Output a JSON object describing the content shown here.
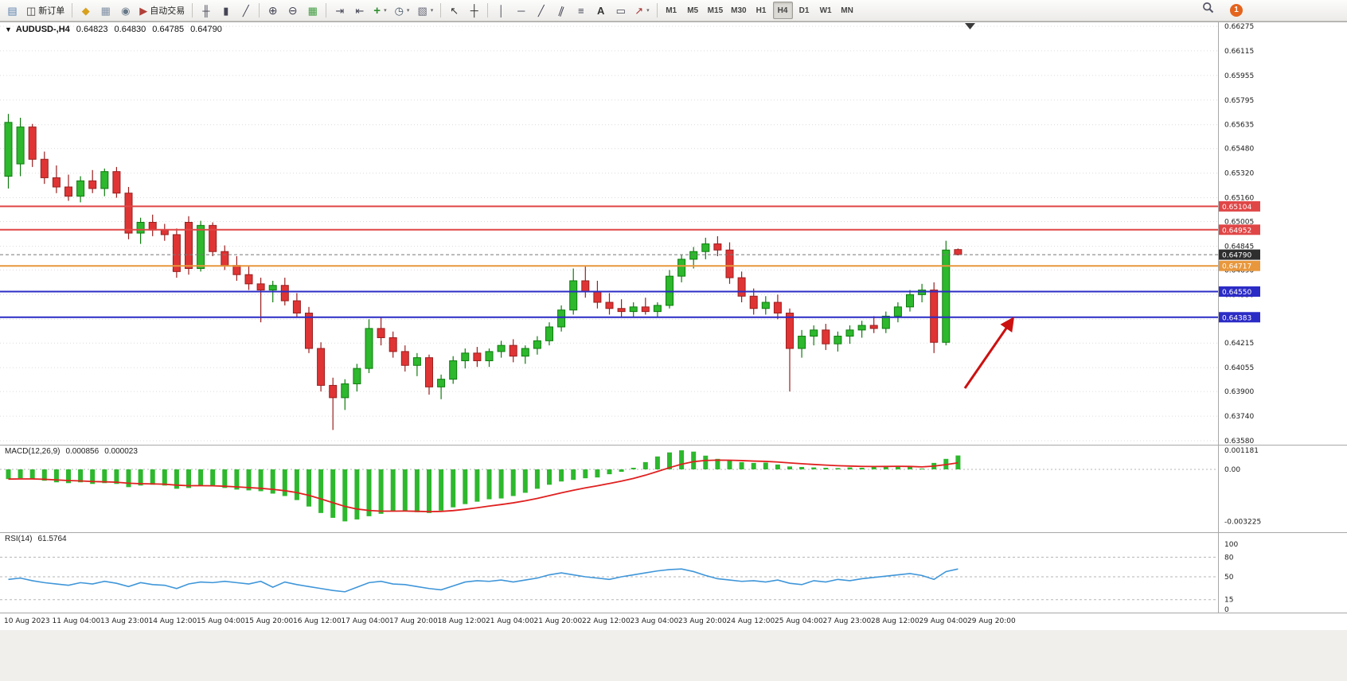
{
  "toolbar": {
    "groups": [
      {
        "items": [
          {
            "name": "new-chart-button",
            "icon": "new-chart-icon"
          },
          {
            "name": "new-order-button",
            "icon": "new-order-icon",
            "label": "新订单"
          }
        ]
      },
      {
        "items": [
          {
            "name": "editor-button",
            "icon": "editor-icon"
          },
          {
            "name": "layouts-button",
            "icon": "layouts-icon"
          },
          {
            "name": "market-button",
            "icon": "market-icon"
          },
          {
            "name": "autotrading-button",
            "icon": "autotrading-icon",
            "label": "自动交易"
          }
        ]
      },
      {
        "items": [
          {
            "name": "bar-chart-button",
            "icon": "bar-chart-icon"
          },
          {
            "name": "candle-chart-button",
            "icon": "candle-chart-icon"
          },
          {
            "name": "line-chart-button",
            "icon": "line-chart-icon"
          }
        ]
      },
      {
        "items": [
          {
            "name": "zoom-in-button",
            "icon": "zoom-in-icon"
          },
          {
            "name": "zoom-out-button",
            "icon": "zoom-out-icon"
          },
          {
            "name": "tile-windows-button",
            "icon": "tile-windows-icon"
          }
        ]
      },
      {
        "items": [
          {
            "name": "auto-scroll-button",
            "icon": "auto-scroll-icon"
          },
          {
            "name": "chart-shift-button",
            "icon": "chart-shift-icon"
          },
          {
            "name": "indicators-button",
            "icon": "indicators-icon",
            "dropdown": true
          },
          {
            "name": "periods-button",
            "icon": "periods-icon",
            "dropdown": true
          },
          {
            "name": "templates-button",
            "icon": "templates-icon",
            "dropdown": true
          }
        ]
      },
      {
        "items": [
          {
            "name": "cursor-button",
            "icon": "cursor-icon"
          },
          {
            "name": "crosshair-button",
            "icon": "crosshair-icon"
          }
        ]
      },
      {
        "items": [
          {
            "name": "vertical-line-button",
            "icon": "vertical-line-icon"
          },
          {
            "name": "horizontal-line-button",
            "icon": "horizontal-line-icon"
          },
          {
            "name": "trendline-button",
            "icon": "trendline-icon"
          },
          {
            "name": "channel-button",
            "icon": "channel-icon"
          },
          {
            "name": "fibonacci-button",
            "icon": "fibonacci-icon"
          },
          {
            "name": "text-button",
            "icon": "text-icon"
          },
          {
            "name": "text-label-button",
            "icon": "text-label-icon"
          },
          {
            "name": "arrows-button",
            "icon": "arrows-icon",
            "dropdown": true
          }
        ]
      }
    ],
    "timeframes": [
      {
        "label": "M1"
      },
      {
        "label": "M5"
      },
      {
        "label": "M15"
      },
      {
        "label": "M30"
      },
      {
        "label": "H1"
      },
      {
        "label": "H4",
        "active": true
      },
      {
        "label": "D1"
      },
      {
        "label": "W1"
      },
      {
        "label": "MN"
      }
    ],
    "right": {
      "notification_count": "1"
    }
  },
  "colors": {
    "bull": "#2db82d",
    "bull_border": "#0f7c0f",
    "bear": "#e03434",
    "bear_border": "#9a1f1f",
    "grid": "#dcdcdc",
    "arrow": "#cc1111",
    "panel_border": "#a8a8a8"
  },
  "chart": {
    "title": {
      "symbol": "AUDUSD-,H4",
      "open": "0.64823",
      "high": "0.64830",
      "low": "0.64785",
      "close": "0.64790"
    },
    "axis_price_labels": [
      "0.66275",
      "0.66115",
      "0.65955",
      "0.65795",
      "0.65635",
      "0.65480",
      "0.65320",
      "0.65160",
      "0.65005",
      "0.64845",
      "0.64690",
      "0.64530",
      "0.64370",
      "0.64215",
      "0.64055",
      "0.63900",
      "0.63740",
      "0.63580"
    ],
    "time_labels": [
      "10 Aug 2023",
      "11 Aug 04:00",
      "13 Aug 23:00",
      "14 Aug 12:00",
      "15 Aug 04:00",
      "15 Aug 20:00",
      "16 Aug 12:00",
      "17 Aug 04:00",
      "17 Aug 20:00",
      "18 Aug 12:00",
      "21 Aug 04:00",
      "21 Aug 20:00",
      "22 Aug 12:00",
      "23 Aug 04:00",
      "23 Aug 20:00",
      "24 Aug 12:00",
      "25 Aug 04:00",
      "27 Aug 23:00",
      "28 Aug 12:00",
      "29 Aug 04:00",
      "29 Aug 20:00"
    ],
    "levels": [
      {
        "name": "resistance-line-1",
        "label": "0.65104",
        "price": 0.65104,
        "color": "#e04646"
      },
      {
        "name": "resistance-line-2",
        "label": "0.64952",
        "price": 0.64952,
        "color": "#e04646"
      },
      {
        "name": "mid-line",
        "label": "0.64717",
        "price": 0.64717,
        "color": "#e8973c"
      },
      {
        "name": "support-line-1",
        "label": "0.64550",
        "price": 0.6455,
        "color": "#2b2bc6"
      },
      {
        "name": "support-line-2",
        "label": "0.64383",
        "price": 0.64383,
        "color": "#2b2bc6"
      }
    ],
    "current_price": {
      "label": "0.64790",
      "price": 0.6479,
      "line_color": "#777777",
      "tag_color": "#2e2e2e"
    },
    "candles": [
      [
        0.653,
        0.65705,
        0.6522,
        0.6565
      ],
      [
        0.6538,
        0.6568,
        0.653,
        0.6562
      ],
      [
        0.6562,
        0.6564,
        0.6536,
        0.6541
      ],
      [
        0.6541,
        0.6546,
        0.6525,
        0.6529
      ],
      [
        0.6529,
        0.6537,
        0.6519,
        0.6523
      ],
      [
        0.6523,
        0.6531,
        0.6514,
        0.6517
      ],
      [
        0.6517,
        0.653,
        0.6513,
        0.6527
      ],
      [
        0.6527,
        0.6534,
        0.6519,
        0.6522
      ],
      [
        0.6522,
        0.6535,
        0.6517,
        0.6533
      ],
      [
        0.6533,
        0.6536,
        0.6516,
        0.6519
      ],
      [
        0.6519,
        0.6523,
        0.6489,
        0.6493
      ],
      [
        0.6493,
        0.6503,
        0.6486,
        0.65
      ],
      [
        0.65,
        0.6505,
        0.6491,
        0.6495
      ],
      [
        0.6495,
        0.6499,
        0.6488,
        0.6492
      ],
      [
        0.6492,
        0.6496,
        0.6464,
        0.6468
      ],
      [
        0.65,
        0.6504,
        0.6466,
        0.647
      ],
      [
        0.647,
        0.6501,
        0.6468,
        0.6498
      ],
      [
        0.6498,
        0.65,
        0.6478,
        0.6481
      ],
      [
        0.6481,
        0.6485,
        0.6469,
        0.6472
      ],
      [
        0.6472,
        0.6478,
        0.6462,
        0.6466
      ],
      [
        0.6466,
        0.6472,
        0.6456,
        0.646
      ],
      [
        0.646,
        0.6464,
        0.6435,
        0.6456
      ],
      [
        0.6456,
        0.6462,
        0.6448,
        0.6459
      ],
      [
        0.6459,
        0.6464,
        0.6446,
        0.6449
      ],
      [
        0.6449,
        0.6454,
        0.6438,
        0.6441
      ],
      [
        0.6441,
        0.6445,
        0.6415,
        0.6418
      ],
      [
        0.6418,
        0.6422,
        0.639,
        0.6394
      ],
      [
        0.6394,
        0.6399,
        0.6365,
        0.6386
      ],
      [
        0.6386,
        0.6398,
        0.6378,
        0.6395
      ],
      [
        0.6395,
        0.6408,
        0.639,
        0.6405
      ],
      [
        0.6405,
        0.6437,
        0.6402,
        0.6431
      ],
      [
        0.6431,
        0.6438,
        0.642,
        0.6425
      ],
      [
        0.6425,
        0.6429,
        0.6412,
        0.6416
      ],
      [
        0.6416,
        0.642,
        0.6403,
        0.6407
      ],
      [
        0.6407,
        0.6415,
        0.64,
        0.6412
      ],
      [
        0.6412,
        0.6414,
        0.6388,
        0.6393
      ],
      [
        0.6393,
        0.6401,
        0.6385,
        0.6398
      ],
      [
        0.6398,
        0.6413,
        0.6395,
        0.641
      ],
      [
        0.641,
        0.6418,
        0.6405,
        0.6415
      ],
      [
        0.6415,
        0.6419,
        0.6406,
        0.641
      ],
      [
        0.641,
        0.6418,
        0.6406,
        0.6416
      ],
      [
        0.6416,
        0.6423,
        0.6412,
        0.642
      ],
      [
        0.642,
        0.6424,
        0.6409,
        0.6413
      ],
      [
        0.6413,
        0.642,
        0.6408,
        0.6418
      ],
      [
        0.6418,
        0.6426,
        0.6414,
        0.6423
      ],
      [
        0.6423,
        0.6435,
        0.642,
        0.6432
      ],
      [
        0.6432,
        0.6446,
        0.6429,
        0.6443
      ],
      [
        0.6443,
        0.647,
        0.644,
        0.6462
      ],
      [
        0.6462,
        0.6472,
        0.6451,
        0.6455
      ],
      [
        0.6455,
        0.6462,
        0.6444,
        0.6448
      ],
      [
        0.6448,
        0.6454,
        0.644,
        0.6444
      ],
      [
        0.6444,
        0.645,
        0.6438,
        0.6442
      ],
      [
        0.6442,
        0.6448,
        0.6438,
        0.6445
      ],
      [
        0.6445,
        0.6451,
        0.644,
        0.6442
      ],
      [
        0.6442,
        0.6448,
        0.6438,
        0.6446
      ],
      [
        0.6446,
        0.6469,
        0.6444,
        0.6465
      ],
      [
        0.6465,
        0.6479,
        0.6461,
        0.6476
      ],
      [
        0.6476,
        0.6484,
        0.647,
        0.6481
      ],
      [
        0.6481,
        0.649,
        0.6476,
        0.6486
      ],
      [
        0.6486,
        0.6491,
        0.6478,
        0.6482
      ],
      [
        0.6482,
        0.6487,
        0.646,
        0.6464
      ],
      [
        0.6464,
        0.6468,
        0.6448,
        0.6452
      ],
      [
        0.6452,
        0.6457,
        0.644,
        0.6444
      ],
      [
        0.6444,
        0.6452,
        0.644,
        0.6448
      ],
      [
        0.6448,
        0.6453,
        0.6437,
        0.6441
      ],
      [
        0.6441,
        0.6444,
        0.639,
        0.6418
      ],
      [
        0.6418,
        0.643,
        0.6412,
        0.6426
      ],
      [
        0.6426,
        0.6433,
        0.642,
        0.643
      ],
      [
        0.643,
        0.6434,
        0.6417,
        0.6421
      ],
      [
        0.6421,
        0.6429,
        0.6416,
        0.6426
      ],
      [
        0.6426,
        0.6433,
        0.6421,
        0.643
      ],
      [
        0.643,
        0.6436,
        0.6425,
        0.6433
      ],
      [
        0.6433,
        0.6439,
        0.6428,
        0.6431
      ],
      [
        0.6431,
        0.6442,
        0.6428,
        0.6439
      ],
      [
        0.6439,
        0.6448,
        0.6435,
        0.6445
      ],
      [
        0.6445,
        0.6456,
        0.6442,
        0.6453
      ],
      [
        0.6453,
        0.646,
        0.6448,
        0.6456
      ],
      [
        0.6456,
        0.6461,
        0.6415,
        0.6422
      ],
      [
        0.6422,
        0.6488,
        0.642,
        0.6482
      ],
      [
        0.64823,
        0.6483,
        0.64785,
        0.6479
      ]
    ]
  },
  "macd": {
    "label": "MACD(12,26,9)",
    "value_main": "0.000856",
    "value_signal": "0.000023",
    "scale_labels": [
      "0.001181",
      "0.00",
      "-0.003225"
    ],
    "histogram_color": "#2db82d",
    "signal_color": "#e02020",
    "histogram": [
      -0.0006,
      -0.00055,
      -0.0006,
      -0.0007,
      -0.0008,
      -0.00085,
      -0.0008,
      -0.0009,
      -0.00085,
      -0.0009,
      -0.0011,
      -0.001,
      -0.00095,
      -0.001,
      -0.0012,
      -0.00115,
      -0.001,
      -0.00105,
      -0.00115,
      -0.00125,
      -0.0013,
      -0.00135,
      -0.0015,
      -0.00165,
      -0.0019,
      -0.0023,
      -0.0027,
      -0.003,
      -0.00322,
      -0.0031,
      -0.0029,
      -0.00275,
      -0.0026,
      -0.00255,
      -0.00265,
      -0.0027,
      -0.00255,
      -0.00235,
      -0.00215,
      -0.002,
      -0.00185,
      -0.0018,
      -0.00165,
      -0.00145,
      -0.0012,
      -0.00095,
      -0.00075,
      -0.00065,
      -0.00055,
      -0.0005,
      -0.0003,
      -0.00015,
      0.0001,
      0.00045,
      0.0008,
      0.00105,
      0.00118,
      0.0011,
      0.00085,
      0.00065,
      0.00055,
      0.00045,
      0.0004,
      0.00042,
      0.0003,
      0.00018,
      0.00015,
      0.00012,
      0.0001,
      8e-05,
      0.00012,
      0.0001,
      0.00015,
      0.0002,
      0.00022,
      0.00015,
      5e-05,
      0.0004,
      0.00065,
      0.00086
    ]
  },
  "rsi": {
    "label": "RSI(14)",
    "value": "61.5764",
    "scale_labels": [
      "100",
      "80",
      "50",
      "15",
      "0"
    ],
    "levels": [
      80,
      50,
      15
    ],
    "line_color": "#3f96d9",
    "values": [
      46,
      48,
      44,
      41,
      39,
      37,
      41,
      39,
      43,
      40,
      35,
      41,
      38,
      37,
      32,
      39,
      42,
      41,
      43,
      41,
      39,
      43,
      34,
      42,
      38,
      35,
      32,
      29,
      27,
      34,
      41,
      43,
      39,
      38,
      35,
      32,
      30,
      36,
      42,
      44,
      43,
      45,
      42,
      45,
      48,
      53,
      56,
      53,
      50,
      48,
      46,
      50,
      53,
      56,
      59,
      61,
      62,
      58,
      52,
      47,
      45,
      43,
      44,
      42,
      45,
      40,
      38,
      44,
      42,
      46,
      44,
      47,
      49,
      51,
      53,
      55,
      52,
      46,
      58,
      62
    ]
  },
  "annotation": {
    "arrow_name": "trend-arrow",
    "arrow_color": "#cc1111"
  }
}
